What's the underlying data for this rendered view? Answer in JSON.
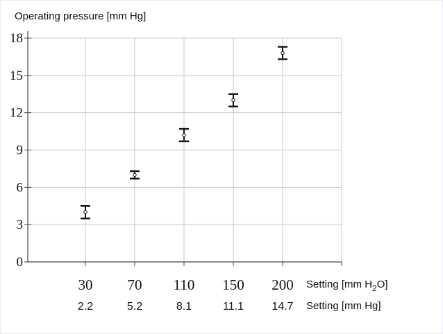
{
  "chart_data": {
    "type": "scatter",
    "title": "",
    "ylabel": "Operating pressure [mm Hg]",
    "ylim": [
      0,
      18
    ],
    "yticks": [
      0,
      3,
      6,
      9,
      12,
      15,
      18
    ],
    "grid": true,
    "x_primary_label": "Setting [mm H2O]",
    "x_primary_label_main": "Setting [mm H",
    "x_primary_label_sub": "2",
    "x_primary_label_tail": "O]",
    "x_secondary_label": "Setting [mm Hg]",
    "x": [
      30,
      70,
      110,
      150,
      200
    ],
    "x_secondary": [
      2.2,
      5.2,
      8.1,
      11.1,
      14.7
    ],
    "series": [
      {
        "y": [
          4.0,
          7.0,
          10.2,
          13.0,
          16.8
        ],
        "y_err_low": [
          0.5,
          0.3,
          0.5,
          0.5,
          0.5
        ],
        "y_err_high": [
          0.5,
          0.3,
          0.5,
          0.5,
          0.5
        ]
      }
    ]
  }
}
